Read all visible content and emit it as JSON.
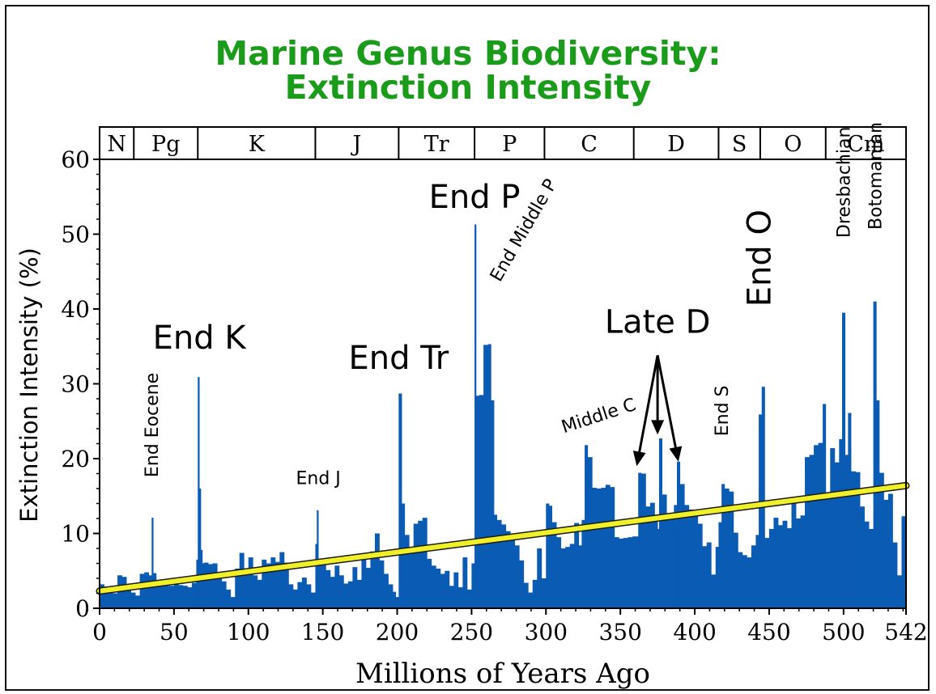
{
  "chart_data": {
    "type": "bar",
    "title": "Marine Genus Biodiversity:",
    "subtitle": "Extinction Intensity",
    "xlabel": "Millions of Years Ago",
    "ylabel": "Extinction Intensity (%)",
    "xlim": [
      0,
      542
    ],
    "ylim": [
      0,
      60
    ],
    "xticks": [
      "0",
      "50",
      "100",
      "150",
      "200",
      "250",
      "300",
      "350",
      "400",
      "450",
      "500",
      "542"
    ],
    "yticks": [
      "0",
      "10",
      "20",
      "30",
      "40",
      "50",
      "60"
    ],
    "grid": false,
    "colors": {
      "bars": "#0a5bb3",
      "trend": "#f0f02a",
      "title": "#1a9b1a",
      "annotation": "#000000"
    },
    "periods": [
      {
        "label": "N",
        "start": 0,
        "end": 23
      },
      {
        "label": "Pg",
        "start": 23,
        "end": 66
      },
      {
        "label": "K",
        "start": 66,
        "end": 145
      },
      {
        "label": "J",
        "start": 145,
        "end": 201
      },
      {
        "label": "Tr",
        "start": 201,
        "end": 252
      },
      {
        "label": "P",
        "start": 252,
        "end": 299
      },
      {
        "label": "C",
        "start": 299,
        "end": 359
      },
      {
        "label": "D",
        "start": 359,
        "end": 416
      },
      {
        "label": "S",
        "start": 416,
        "end": 444
      },
      {
        "label": "O",
        "start": 444,
        "end": 488
      },
      {
        "label": "Cm",
        "start": 488,
        "end": 542
      }
    ],
    "series": [
      {
        "x": [
          0,
          3,
          6,
          9,
          12,
          15,
          18,
          21,
          24,
          27,
          30,
          33,
          35,
          36,
          38,
          40,
          43,
          46,
          50,
          53,
          56,
          59,
          62,
          65,
          66,
          67,
          68,
          69,
          70,
          73,
          76,
          79,
          82,
          85,
          88,
          91,
          94,
          97,
          100,
          103,
          106,
          109,
          112,
          115,
          118,
          121,
          124,
          127,
          130,
          133,
          136,
          139,
          142,
          145,
          146,
          147,
          149,
          152,
          155,
          158,
          161,
          164,
          167,
          170,
          173,
          176,
          179,
          182,
          185,
          188,
          191,
          194,
          197,
          199,
          201,
          203,
          205,
          208,
          211,
          214,
          217,
          220,
          223,
          226,
          229,
          232,
          235,
          238,
          241,
          244,
          247,
          250,
          252,
          253,
          255,
          258,
          261,
          263,
          265,
          267,
          270,
          273,
          276,
          279,
          282,
          285,
          288,
          291,
          294,
          297,
          300,
          302,
          304,
          307,
          310,
          313,
          316,
          319,
          322,
          324,
          326,
          328,
          331,
          334,
          337,
          340,
          343,
          346,
          349,
          352,
          355,
          358,
          360,
          362,
          364,
          367,
          370,
          373,
          375,
          376,
          378,
          381,
          384,
          386,
          388,
          390,
          393,
          396,
          399,
          402,
          405,
          408,
          411,
          414,
          416,
          418,
          420,
          423,
          426,
          429,
          432,
          435,
          438,
          441,
          443,
          445,
          447,
          450,
          453,
          456,
          459,
          462,
          465,
          468,
          471,
          474,
          477,
          480,
          483,
          486,
          488,
          491,
          494,
          497,
          499,
          501,
          503,
          505,
          508,
          511,
          514,
          517,
          520,
          522,
          524,
          527,
          530,
          533,
          536,
          539
        ],
        "y": [
          3.2,
          2.9,
          2.4,
          2.0,
          4.4,
          4.2,
          2.6,
          2.1,
          1.7,
          4.6,
          4.8,
          4.4,
          12.1,
          4.7,
          3.5,
          3.3,
          3.1,
          3.0,
          3.2,
          3.1,
          3.0,
          2.8,
          3.4,
          6.5,
          30.9,
          16.0,
          7.8,
          6.0,
          6.1,
          5.9,
          6.0,
          4.8,
          3.6,
          2.5,
          1.5,
          5.3,
          7.4,
          4.4,
          6.8,
          4.4,
          3.8,
          6.5,
          6.0,
          6.8,
          6.2,
          7.5,
          6.1,
          3.2,
          2.5,
          3.5,
          4.1,
          3.2,
          2.1,
          8.6,
          13.1,
          6.2,
          5.8,
          5.1,
          4.2,
          5.7,
          4.4,
          3.3,
          3.6,
          5.5,
          3.8,
          6.9,
          5.4,
          7.6,
          10.0,
          6.4,
          4.6,
          3.2,
          2.2,
          1.5,
          28.7,
          14.0,
          9.8,
          8.0,
          11.3,
          11.7,
          12.1,
          6.6,
          5.7,
          5.3,
          4.6,
          5.0,
          3.0,
          4.8,
          2.8,
          6.8,
          2.5,
          6.0,
          51.3,
          28.4,
          28.5,
          35.2,
          35.3,
          27.8,
          12.5,
          11.8,
          11.2,
          10.3,
          9.1,
          8.4,
          6.4,
          3.4,
          2.1,
          3.8,
          8.0,
          4.0,
          14.0,
          13.7,
          11.5,
          9.5,
          8.0,
          8.2,
          8.6,
          11.4,
          8.4,
          11.8,
          21.8,
          20.2,
          16.1,
          16.0,
          16.1,
          16.5,
          16.2,
          9.5,
          9.3,
          9.4,
          9.5,
          9.6,
          9.6,
          18.1,
          18.0,
          13.6,
          14.1,
          12.1,
          10.6,
          22.7,
          15.2,
          12.4,
          12.0,
          13.8,
          19.6,
          16.6,
          13.8,
          13.2,
          12.8,
          11.3,
          8.3,
          8.8,
          4.5,
          8.2,
          11.5,
          16.6,
          16.0,
          15.6,
          10.1,
          7.5,
          7.1,
          6.8,
          8.4,
          9.8,
          25.9,
          29.6,
          9.4,
          10.6,
          12.1,
          11.1,
          11.7,
          10.7,
          14.5,
          12.0,
          12.4,
          20.2,
          20.5,
          21.8,
          22.1,
          27.3,
          15.2,
          21.4,
          19.5,
          22.6,
          39.5,
          20.5,
          26.1,
          18.3,
          18.2,
          13.6,
          11.6,
          10.6,
          41.0,
          27.8,
          18.1,
          14.5,
          15.3,
          8.8,
          4.4,
          12.3
        ]
      },
      {
        "x": [
          0,
          542
        ],
        "y": [
          2.3,
          16.4
        ]
      }
    ],
    "annotations": [
      {
        "text": "End Eocene",
        "x": 35,
        "y": 17.5,
        "rotate": -90,
        "size": "small"
      },
      {
        "text": "End K",
        "x": 67,
        "y": 34.7,
        "rotate": 0,
        "size": "large"
      },
      {
        "text": "End J",
        "x": 147,
        "y": 16.6,
        "rotate": 0,
        "size": "small"
      },
      {
        "text": "End Tr",
        "x": 201,
        "y": 32.0,
        "rotate": 0,
        "size": "large"
      },
      {
        "text": "End P",
        "x": 252,
        "y": 53.5,
        "rotate": 0,
        "size": "large"
      },
      {
        "text": "End Middle P",
        "x": 269,
        "y": 43.5,
        "rotate": -60,
        "size": "small"
      },
      {
        "text": "Middle C",
        "x": 312,
        "y": 23.4,
        "rotate": -18,
        "size": "small"
      },
      {
        "text": "Late D",
        "x": 375,
        "y": 36.8,
        "rotate": 0,
        "size": "large"
      },
      {
        "text": "End S",
        "x": 418,
        "y": 23.0,
        "rotate": -90,
        "size": "small"
      },
      {
        "text": "End O",
        "x": 443,
        "y": 40.3,
        "rotate": -90,
        "size": "large"
      },
      {
        "text": "Dresbachian",
        "x": 500,
        "y": 49.5,
        "rotate": -90,
        "size": "small"
      },
      {
        "text": "Botomanian",
        "x": 521,
        "y": 50.6,
        "rotate": -90,
        "size": "small"
      }
    ],
    "arrows": [
      {
        "from_x": 375,
        "from_y": 33.8,
        "to_x": 361,
        "to_y": 19.0
      },
      {
        "from_x": 375,
        "from_y": 33.8,
        "to_x": 375,
        "to_y": 23.2
      },
      {
        "from_x": 375,
        "from_y": 33.8,
        "to_x": 389,
        "to_y": 19.6
      }
    ]
  }
}
